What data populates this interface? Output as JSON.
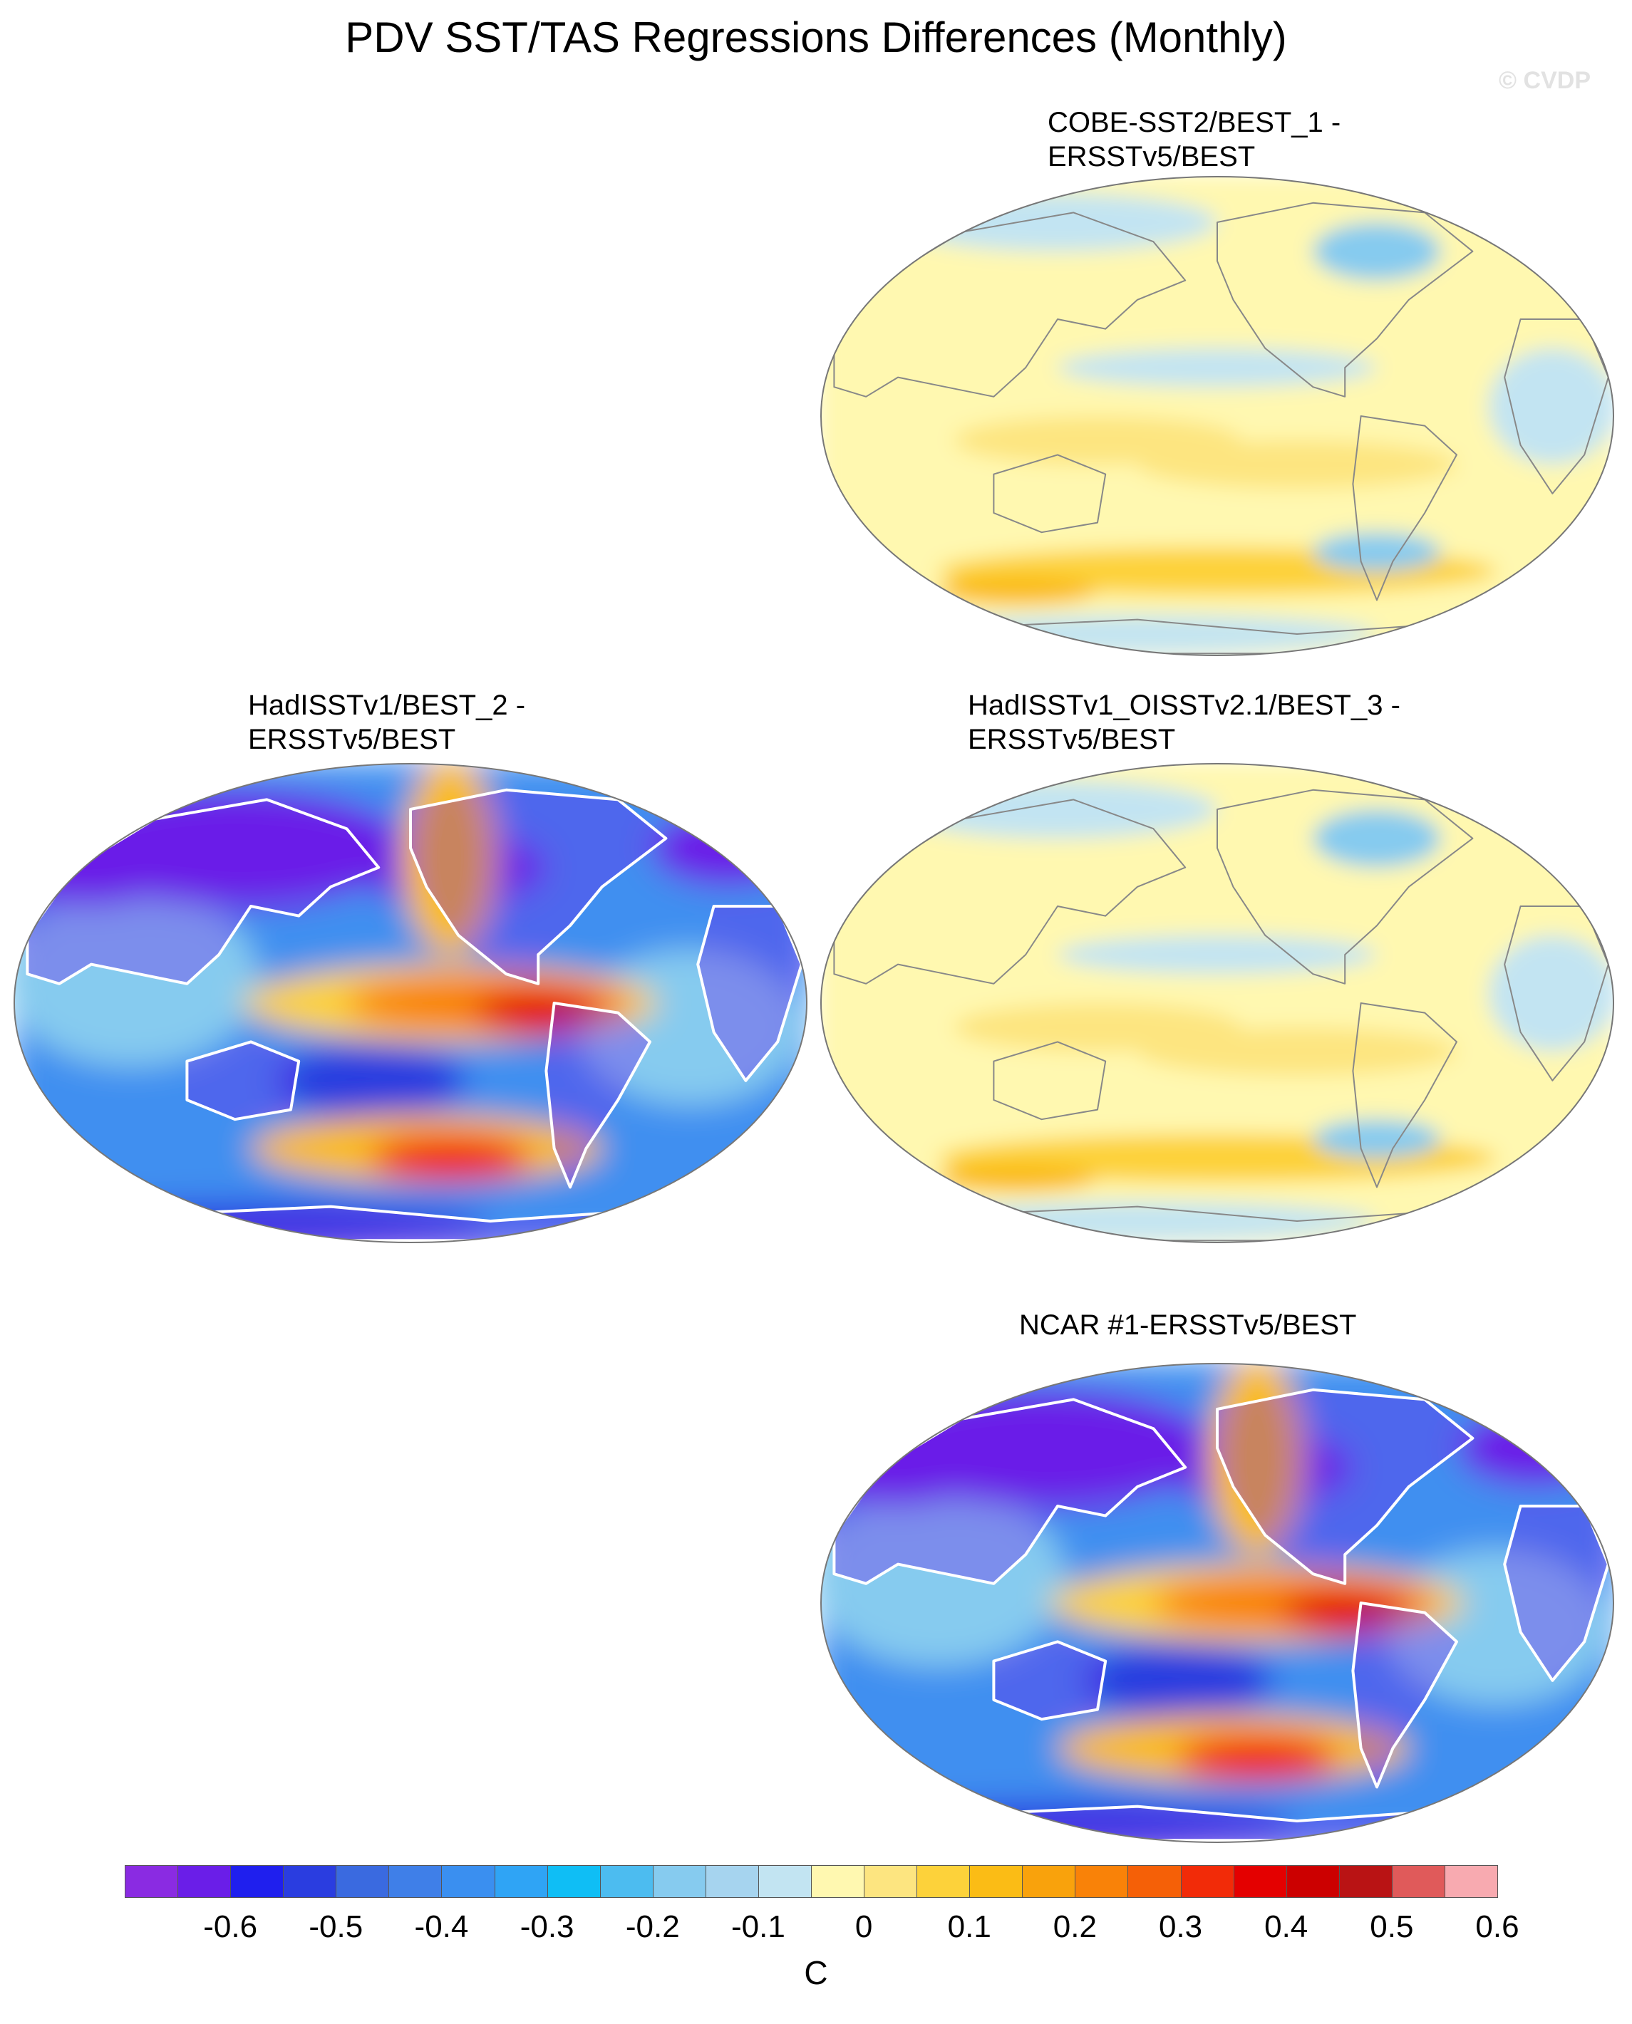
{
  "title": "PDV SST/TAS Regressions Differences (Monthly)",
  "watermark": "© CVDP",
  "panels": [
    {
      "id": "cobe",
      "title_line1": "COBE-SST2/BEST_1 -",
      "title_line2": "ERSSTv5/BEST",
      "pattern": "weak"
    },
    {
      "id": "hadisst",
      "title_line1": "HadISSTv1/BEST_2 -",
      "title_line2": "ERSSTv5/BEST",
      "pattern": "strong"
    },
    {
      "id": "hadoi",
      "title_line1": "HadISSTv1_OISSTv2.1/BEST_3 -",
      "title_line2": "ERSSTv5/BEST",
      "pattern": "weak"
    },
    {
      "id": "ncar",
      "title_line1": "NCAR #1-ERSSTv5/BEST",
      "title_line2": "",
      "pattern": "strong"
    }
  ],
  "colorbar": {
    "colors": [
      "#8a2be2",
      "#6a1ee8",
      "#1f1fee",
      "#2a3de0",
      "#3a6ae0",
      "#3f7fe8",
      "#3a8ff0",
      "#2fa4f5",
      "#0fbef5",
      "#4cbcf0",
      "#86cbef",
      "#a6d4ef",
      "#c2e4f2",
      "#fff8b0",
      "#fde580",
      "#fdd23a",
      "#fbbc15",
      "#f9a20c",
      "#f98208",
      "#f56007",
      "#f22b08",
      "#e40000",
      "#cc0000",
      "#b91314",
      "#e05a5a",
      "#f8aab0"
    ],
    "labels": [
      "-0.6",
      "-0.5",
      "-0.4",
      "-0.3",
      "-0.2",
      "-0.1",
      "0",
      "0.1",
      "0.2",
      "0.3",
      "0.4",
      "0.5",
      "0.6"
    ],
    "units": "C"
  }
}
